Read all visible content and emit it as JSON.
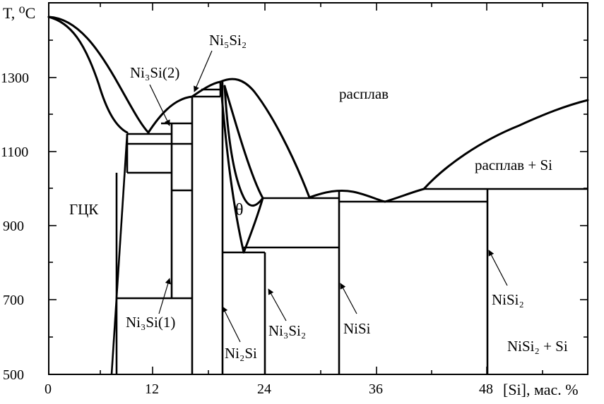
{
  "axes": {
    "y_title": "T, ⁰C",
    "x_title": "[Si], мас. %",
    "y_ticks": [
      "500",
      "700",
      "900",
      "1100",
      "1300"
    ],
    "x_ticks": [
      "0",
      "12",
      "24",
      "36",
      "48"
    ]
  },
  "phase_labels": {
    "melt": "расплав",
    "melt_si": "расплав + Si",
    "fcc": "ГЦК",
    "theta": "θ",
    "ni5si2": "Ni₅Si₂",
    "ni3si_2": "Ni₃Si(2)",
    "ni3si_1": "Ni₃Si(1)",
    "ni2si": "Ni₂Si",
    "ni3si2": "Ni₃Si₂",
    "nisi": "NiSi",
    "nisi2": "NiSi₂",
    "nisi2_si": "NiSi₂ + Si"
  }
}
